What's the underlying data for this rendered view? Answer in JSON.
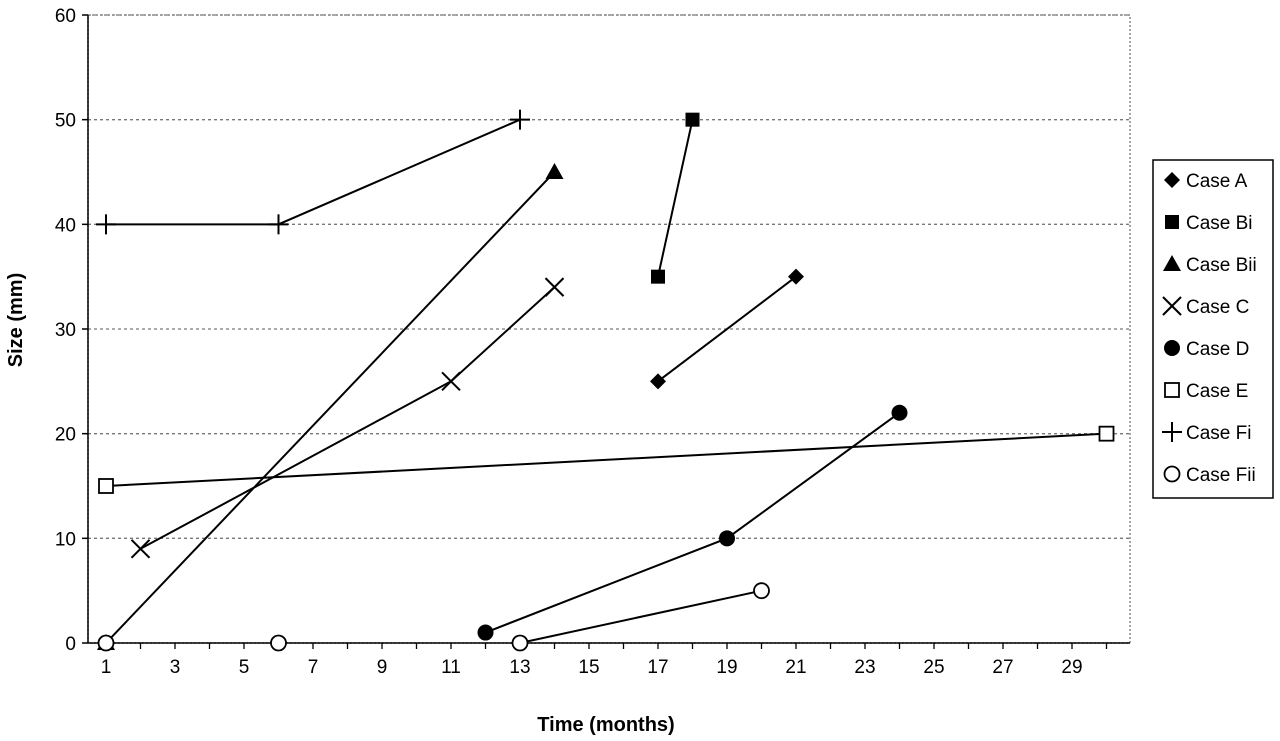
{
  "chart_data": {
    "type": "line",
    "title": "",
    "xlabel": "Time (months)",
    "ylabel": "Size (mm)",
    "xlim": [
      0.5,
      31
    ],
    "ylim": [
      0,
      60
    ],
    "x_ticks": [
      1,
      3,
      5,
      7,
      9,
      11,
      13,
      15,
      17,
      19,
      21,
      23,
      25,
      27,
      29
    ],
    "y_ticks": [
      0,
      10,
      20,
      30,
      40,
      50,
      60
    ],
    "grid": "horizontal dashed",
    "legend_position": "right",
    "series": [
      {
        "name": "Case A",
        "marker": "diamond",
        "points": [
          [
            17,
            25
          ],
          [
            21,
            35
          ]
        ]
      },
      {
        "name": "Case Bi",
        "marker": "square-filled",
        "points": [
          [
            17,
            35
          ],
          [
            18,
            50
          ]
        ]
      },
      {
        "name": "Case Bii",
        "marker": "triangle-filled",
        "points": [
          [
            1,
            0
          ],
          [
            14,
            45
          ]
        ]
      },
      {
        "name": "Case C",
        "marker": "x",
        "points": [
          [
            2,
            9
          ],
          [
            11,
            25
          ],
          [
            14,
            34
          ]
        ]
      },
      {
        "name": "Case D",
        "marker": "circle-filled",
        "points": [
          [
            12,
            1
          ],
          [
            19,
            10
          ],
          [
            24,
            22
          ]
        ]
      },
      {
        "name": "Case E",
        "marker": "square-open",
        "points": [
          [
            1,
            15
          ],
          [
            30,
            20
          ]
        ]
      },
      {
        "name": "Case Fi",
        "marker": "plus",
        "points": [
          [
            1,
            40
          ],
          [
            6,
            40
          ],
          [
            13,
            50
          ]
        ]
      },
      {
        "name": "Case Fii",
        "marker": "circle-open",
        "points": [
          [
            1,
            0
          ],
          [
            6,
            0
          ],
          [
            13,
            0
          ],
          [
            20,
            5
          ]
        ],
        "lines": [
          [
            2,
            3
          ]
        ]
      }
    ]
  }
}
